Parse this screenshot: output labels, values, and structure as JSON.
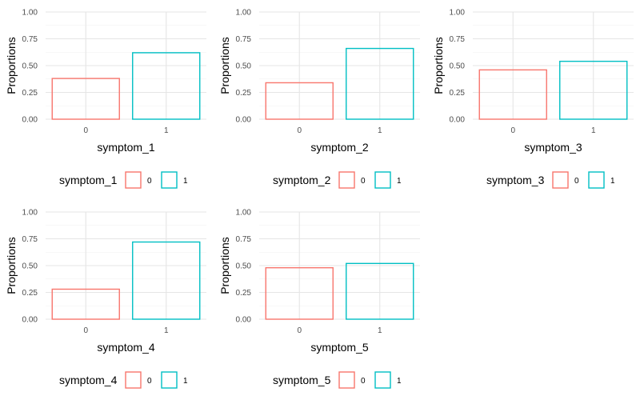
{
  "colors": {
    "level_0": "#F8766D",
    "level_1": "#00BFC4",
    "grid_major": "#e5e5e5",
    "grid_minor": "#f2f2f2"
  },
  "chart_data": [
    {
      "type": "bar",
      "fill": "none",
      "categories": [
        "0",
        "1"
      ],
      "values": [
        0.38,
        0.62
      ],
      "xlabel": "symptom_1",
      "ylabel": "Proportions",
      "ylim": [
        0,
        1
      ],
      "yticks": [
        "0.00",
        "0.25",
        "0.50",
        "0.75",
        "1.00"
      ],
      "grid": true,
      "legend": {
        "title": "symptom_1",
        "position": "bottom",
        "entries": [
          "0",
          "1"
        ]
      }
    },
    {
      "type": "bar",
      "fill": "none",
      "categories": [
        "0",
        "1"
      ],
      "values": [
        0.34,
        0.66
      ],
      "xlabel": "symptom_2",
      "ylabel": "Proportions",
      "ylim": [
        0,
        1
      ],
      "yticks": [
        "0.00",
        "0.25",
        "0.50",
        "0.75",
        "1.00"
      ],
      "grid": true,
      "legend": {
        "title": "symptom_2",
        "position": "bottom",
        "entries": [
          "0",
          "1"
        ]
      }
    },
    {
      "type": "bar",
      "fill": "none",
      "categories": [
        "0",
        "1"
      ],
      "values": [
        0.46,
        0.54
      ],
      "xlabel": "symptom_3",
      "ylabel": "Proportions",
      "ylim": [
        0,
        1
      ],
      "yticks": [
        "0.00",
        "0.25",
        "0.50",
        "0.75",
        "1.00"
      ],
      "grid": true,
      "legend": {
        "title": "symptom_3",
        "position": "bottom",
        "entries": [
          "0",
          "1"
        ]
      }
    },
    {
      "type": "bar",
      "fill": "none",
      "categories": [
        "0",
        "1"
      ],
      "values": [
        0.28,
        0.72
      ],
      "xlabel": "symptom_4",
      "ylabel": "Proportions",
      "ylim": [
        0,
        1
      ],
      "yticks": [
        "0.00",
        "0.25",
        "0.50",
        "0.75",
        "1.00"
      ],
      "grid": true,
      "legend": {
        "title": "symptom_4",
        "position": "bottom",
        "entries": [
          "0",
          "1"
        ]
      }
    },
    {
      "type": "bar",
      "fill": "none",
      "categories": [
        "0",
        "1"
      ],
      "values": [
        0.48,
        0.52
      ],
      "xlabel": "symptom_5",
      "ylabel": "Proportions",
      "ylim": [
        0,
        1
      ],
      "yticks": [
        "0.00",
        "0.25",
        "0.50",
        "0.75",
        "1.00"
      ],
      "grid": true,
      "legend": {
        "title": "symptom_5",
        "position": "bottom",
        "entries": [
          "0",
          "1"
        ]
      }
    }
  ]
}
